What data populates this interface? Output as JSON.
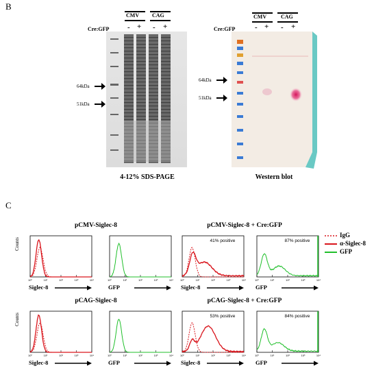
{
  "panel_b": {
    "letter": "B",
    "sds": {
      "groups": [
        "CMV",
        "CAG"
      ],
      "lanes": [
        "-",
        "+",
        "-",
        "+"
      ],
      "cre_label": "Cre:GFP",
      "markers": [
        "64kDa",
        "51kDa"
      ],
      "caption": "4-12% SDS-PAGE"
    },
    "western": {
      "groups": [
        "CMV",
        "CAG"
      ],
      "lanes": [
        "-",
        "+",
        "-",
        "+"
      ],
      "cre_label": "Cre:GFP",
      "markers": [
        "64kDa",
        "51kDa"
      ],
      "caption": "Western blot"
    }
  },
  "panel_c": {
    "letter": "C",
    "row1_left_title": "pCMV-Siglec-8",
    "row1_right_title": "pCMV-Siglec-8 + Cre:GFP",
    "row2_left_title": "pCAG-Siglec-8",
    "row2_right_title": "pCAG-Siglec-8 + Cre:GFP",
    "y_label": "Counts",
    "x_labels": {
      "siglec": "Siglec-8",
      "gfp": "GFP"
    },
    "percent_labels": {
      "cmv_siglec": "41%  positive",
      "cmv_gfp": "87% positive",
      "cag_siglec": "53% positive",
      "cag_gfp": "84% positive"
    },
    "legend": [
      {
        "name": "IgG",
        "color": "#d9141b",
        "style": "dotted"
      },
      {
        "name": "α-Siglec-8",
        "color": "#d9141b",
        "style": "solid"
      },
      {
        "name": "GFP",
        "color": "#1fbf2a",
        "style": "solid"
      }
    ],
    "tick_labels": [
      "10⁰",
      "10¹",
      "10²",
      "10³",
      "10⁴"
    ]
  }
}
